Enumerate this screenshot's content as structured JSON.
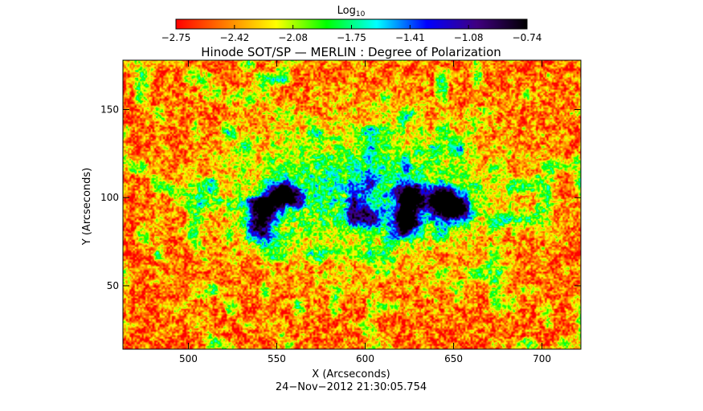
{
  "chart_data": {
    "type": "heatmap",
    "title": "Hinode SOT/SP — MERLIN : Degree of Polarization",
    "xlabel": "X (Arcseconds)",
    "ylabel": "Y (Arcseconds)",
    "timestamp": "24−Nov−2012 21:30:05.754",
    "xlim": [
      463,
      722
    ],
    "ylim": [
      14,
      178
    ],
    "x_ticks": [
      500,
      550,
      600,
      650,
      700
    ],
    "y_ticks": [
      50,
      100,
      150
    ],
    "colorbar": {
      "label_base": "Log",
      "label_sub": "10",
      "min": -2.75,
      "max": -0.74,
      "ticks": [
        "−2.75",
        "−2.42",
        "−2.08",
        "−1.75",
        "−1.41",
        "−1.08",
        "−0.74"
      ],
      "colormap": [
        "#ff0000",
        "#ff7f00",
        "#ffff00",
        "#00ff00",
        "#00ffff",
        "#0000ff",
        "#400080",
        "#000000"
      ]
    },
    "high_polarization_regions": [
      {
        "x": 542,
        "y": 94,
        "strength": 1.0
      },
      {
        "x": 553,
        "y": 102,
        "strength": 1.0
      },
      {
        "x": 540,
        "y": 82,
        "strength": 0.75
      },
      {
        "x": 625,
        "y": 101,
        "strength": 1.0
      },
      {
        "x": 645,
        "y": 99,
        "strength": 0.95
      },
      {
        "x": 652,
        "y": 93,
        "strength": 0.9
      },
      {
        "x": 623,
        "y": 86,
        "strength": 0.8
      },
      {
        "x": 600,
        "y": 89,
        "strength": 0.55
      }
    ]
  }
}
